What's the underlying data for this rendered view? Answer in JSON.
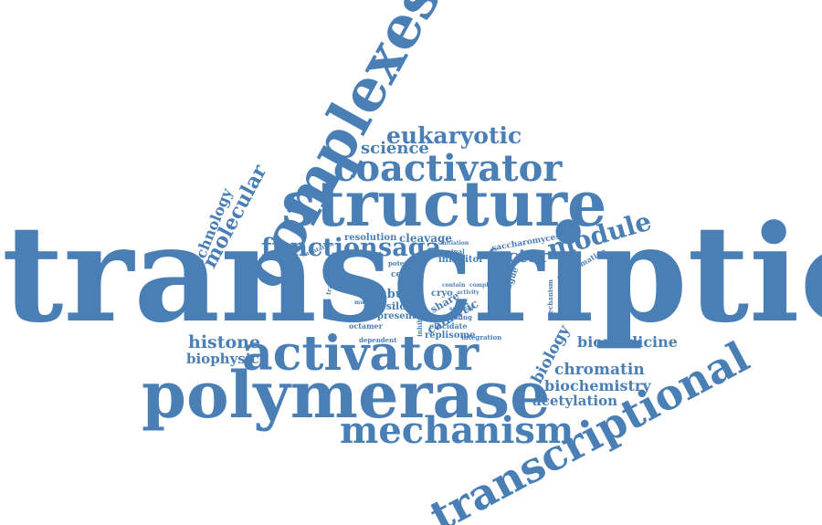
{
  "cloud": {
    "color": "#4a7fb6",
    "background": "#ffffff",
    "words": [
      {
        "text": "transcription"
      },
      {
        "text": "complexes"
      },
      {
        "text": "structure"
      },
      {
        "text": "coactivator"
      },
      {
        "text": "eukaryotic"
      },
      {
        "text": "science"
      },
      {
        "text": "polymerase"
      },
      {
        "text": "activator"
      },
      {
        "text": "mechanism"
      },
      {
        "text": "transcriptional"
      },
      {
        "text": "function"
      },
      {
        "text": "saga"
      },
      {
        "text": "module"
      },
      {
        "text": "factor"
      },
      {
        "text": "molecular"
      },
      {
        "text": "technology"
      },
      {
        "text": "histone"
      },
      {
        "text": "biophysic"
      },
      {
        "text": "biomedicine"
      },
      {
        "text": "chromatin"
      },
      {
        "text": "biochemistry"
      },
      {
        "text": "acetylation"
      },
      {
        "text": "biology"
      },
      {
        "text": "resolution"
      },
      {
        "text": "cleavage"
      },
      {
        "text": "saccharomyces"
      },
      {
        "text": "subunit"
      },
      {
        "text": "epsilon"
      },
      {
        "text": "present"
      },
      {
        "text": "catalytic"
      },
      {
        "text": "share"
      },
      {
        "text": "cryo"
      },
      {
        "text": "inhibitor"
      },
      {
        "text": "elucidate"
      },
      {
        "text": "replisome"
      },
      {
        "text": "integration"
      },
      {
        "text": "dependent"
      },
      {
        "text": "inhibition"
      },
      {
        "text": "octamer"
      },
      {
        "text": "building"
      },
      {
        "text": "paralogue"
      },
      {
        "text": "mechanism"
      },
      {
        "text": "conformation"
      },
      {
        "text": "terminal"
      },
      {
        "text": "potent"
      },
      {
        "text": "cell"
      },
      {
        "text": "sulfatation"
      },
      {
        "text": "transcript"
      },
      {
        "text": "contain"
      },
      {
        "text": "activity"
      },
      {
        "text": "complex"
      },
      {
        "text": "initiation"
      },
      {
        "text": "multiple"
      },
      {
        "text": "scaffold"
      }
    ]
  }
}
